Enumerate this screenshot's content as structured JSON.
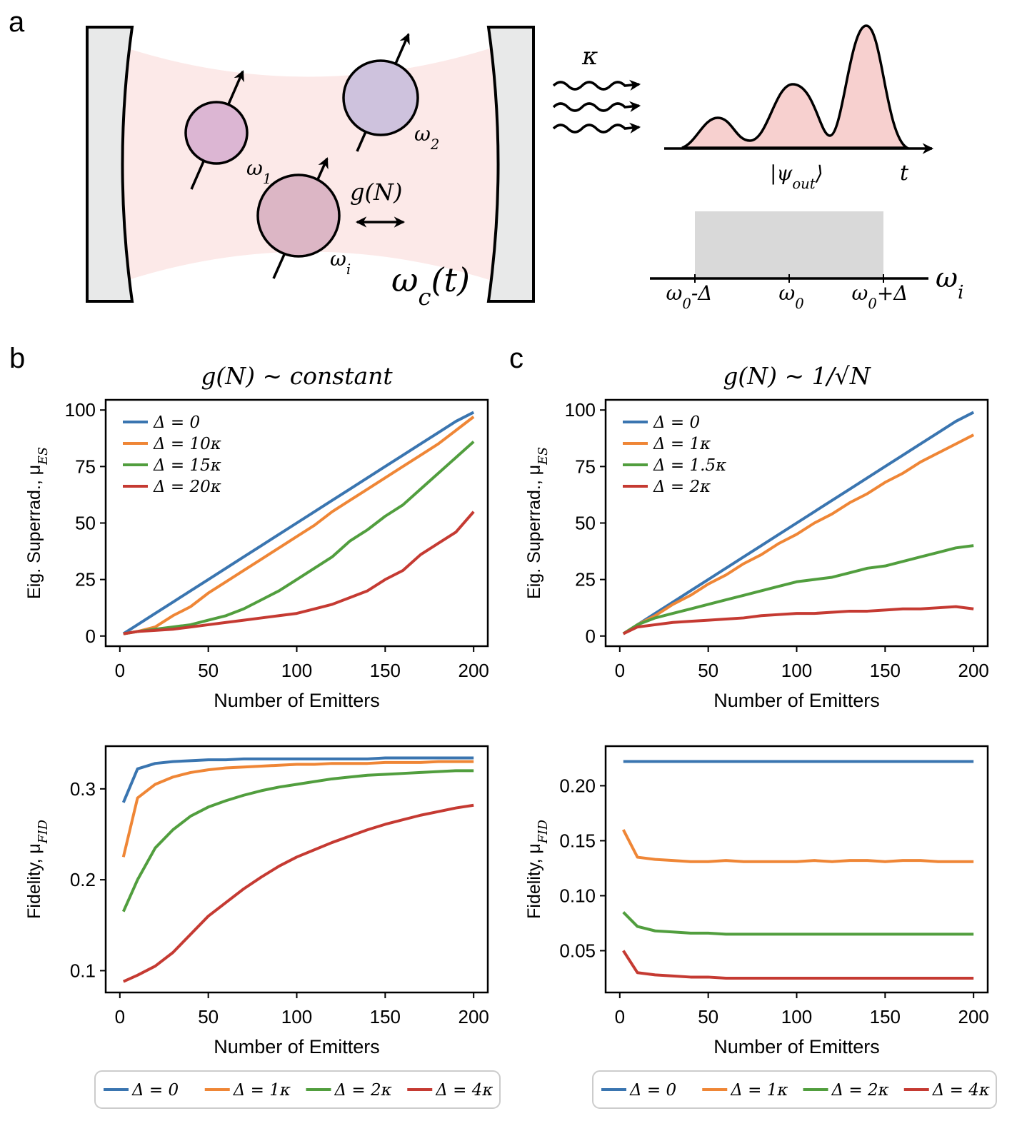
{
  "diagram": {
    "label": "a",
    "decay": "κ",
    "coupling": "g(N)",
    "emitters": [
      {
        "main": "ω",
        "sub": "1"
      },
      {
        "main": "ω",
        "sub": "2"
      },
      {
        "main": "ω",
        "sub": "i"
      }
    ],
    "cavity": {
      "main": "ω",
      "sub": "c",
      "tail": "(t)"
    },
    "output": {
      "open": "|ψ",
      "sub": "out",
      "close": "⟩"
    },
    "time_axis": "t",
    "freq_ticks": [
      {
        "main": "ω",
        "sub": "0",
        "tail": "-Δ"
      },
      {
        "main": "ω",
        "sub": "0"
      },
      {
        "main": "ω",
        "sub": "0",
        "tail": "+Δ"
      }
    ],
    "freq_axis": {
      "main": "ω",
      "sub": "i"
    }
  },
  "chart_data": [
    {
      "type": "line",
      "panel_label": "b",
      "title": "g(N) ∼ constant",
      "xlabel": "Number of Emitters",
      "ylabel": {
        "main": "Eig. Superrad., μ",
        "sub": "ES"
      },
      "xlim": [
        -8,
        208
      ],
      "ylim": [
        -4.5,
        104.5
      ],
      "xticks": [
        0,
        50,
        100,
        150,
        200
      ],
      "yticks": [
        0,
        25,
        50,
        75,
        100
      ],
      "legend": "upper left",
      "x": [
        2,
        10,
        20,
        30,
        40,
        50,
        60,
        70,
        80,
        90,
        100,
        110,
        120,
        130,
        140,
        150,
        160,
        170,
        180,
        190,
        200
      ],
      "series": [
        {
          "name": "Δ = 0",
          "color": "#3a75b0",
          "values": [
            1,
            5,
            10,
            15,
            20,
            25,
            30,
            35,
            40,
            45,
            50,
            55,
            60,
            65,
            70,
            75,
            80,
            85,
            90,
            95,
            99
          ]
        },
        {
          "name": "Δ = 10κ",
          "color": "#ef8636",
          "values": [
            1,
            2,
            4,
            9,
            13,
            19,
            24,
            29,
            34,
            39,
            44,
            49,
            55,
            60,
            65,
            70,
            75,
            80,
            85,
            91,
            97
          ]
        },
        {
          "name": "Δ = 15κ",
          "color": "#519e3e",
          "values": [
            1,
            2,
            3,
            4,
            5,
            7,
            9,
            12,
            16,
            20,
            25,
            30,
            35,
            42,
            47,
            53,
            58,
            65,
            72,
            79,
            86
          ]
        },
        {
          "name": "Δ = 20κ",
          "color": "#c53a32",
          "values": [
            1,
            2,
            2.5,
            3,
            4,
            5,
            6,
            7,
            8,
            9,
            10,
            12,
            14,
            17,
            20,
            25,
            29,
            36,
            41,
            46,
            55
          ]
        }
      ]
    },
    {
      "type": "line",
      "xlabel": "Number of Emitters",
      "ylabel": {
        "main": "Fidelity, μ",
        "sub": "FID"
      },
      "xlim": [
        -8,
        208
      ],
      "ylim": [
        0.076,
        0.347
      ],
      "xticks": [
        0,
        50,
        100,
        150,
        200
      ],
      "yticks": [
        0.1,
        0.2,
        0.3
      ],
      "legend": "below",
      "x": [
        2,
        10,
        20,
        30,
        40,
        50,
        60,
        70,
        80,
        90,
        100,
        110,
        120,
        130,
        140,
        150,
        160,
        170,
        180,
        190,
        200
      ],
      "series": [
        {
          "name": "Δ = 0",
          "color": "#3a75b0",
          "values": [
            0.285,
            0.322,
            0.328,
            0.33,
            0.331,
            0.332,
            0.332,
            0.333,
            0.333,
            0.333,
            0.333,
            0.333,
            0.333,
            0.333,
            0.333,
            0.334,
            0.334,
            0.334,
            0.334,
            0.334,
            0.334
          ]
        },
        {
          "name": "Δ = 1κ",
          "color": "#ef8636",
          "values": [
            0.225,
            0.29,
            0.305,
            0.313,
            0.318,
            0.321,
            0.323,
            0.324,
            0.325,
            0.326,
            0.327,
            0.327,
            0.328,
            0.328,
            0.328,
            0.329,
            0.329,
            0.329,
            0.33,
            0.33,
            0.33
          ]
        },
        {
          "name": "Δ = 2κ",
          "color": "#519e3e",
          "values": [
            0.165,
            0.2,
            0.235,
            0.255,
            0.27,
            0.28,
            0.287,
            0.293,
            0.298,
            0.302,
            0.305,
            0.308,
            0.311,
            0.313,
            0.315,
            0.316,
            0.317,
            0.318,
            0.319,
            0.32,
            0.32
          ]
        },
        {
          "name": "Δ = 4κ",
          "color": "#c53a32",
          "values": [
            0.088,
            0.095,
            0.105,
            0.12,
            0.14,
            0.16,
            0.175,
            0.19,
            0.203,
            0.215,
            0.225,
            0.233,
            0.241,
            0.248,
            0.255,
            0.261,
            0.266,
            0.271,
            0.275,
            0.279,
            0.282
          ]
        }
      ]
    },
    {
      "type": "line",
      "panel_label": "c",
      "title": "g(N) ∼ 1/√N",
      "xlabel": "Number of Emitters",
      "ylabel": {
        "main": "Eig. Superrad., μ",
        "sub": "ES"
      },
      "xlim": [
        -8,
        208
      ],
      "ylim": [
        -4.5,
        104.5
      ],
      "xticks": [
        0,
        50,
        100,
        150,
        200
      ],
      "yticks": [
        0,
        25,
        50,
        75,
        100
      ],
      "legend": "upper left",
      "x": [
        2,
        10,
        20,
        30,
        40,
        50,
        60,
        70,
        80,
        90,
        100,
        110,
        120,
        130,
        140,
        150,
        160,
        170,
        180,
        190,
        200
      ],
      "series": [
        {
          "name": "Δ = 0",
          "color": "#3a75b0",
          "values": [
            1,
            5,
            10,
            15,
            20,
            25,
            30,
            35,
            40,
            45,
            50,
            55,
            60,
            65,
            70,
            75,
            80,
            85,
            90,
            95,
            99
          ]
        },
        {
          "name": "Δ = 1κ",
          "color": "#ef8636",
          "values": [
            1,
            5,
            9,
            14,
            18,
            23,
            27,
            32,
            36,
            41,
            45,
            50,
            54,
            59,
            63,
            68,
            72,
            77,
            81,
            85,
            89
          ]
        },
        {
          "name": "Δ = 1.5κ",
          "color": "#519e3e",
          "values": [
            1,
            5,
            8,
            10,
            12,
            14,
            16,
            18,
            20,
            22,
            24,
            25,
            26,
            28,
            30,
            31,
            33,
            35,
            37,
            39,
            40
          ]
        },
        {
          "name": "Δ = 2κ",
          "color": "#c53a32",
          "values": [
            1,
            4,
            5,
            6,
            6.5,
            7,
            7.5,
            8,
            9,
            9.5,
            10,
            10,
            10.5,
            11,
            11,
            11.5,
            12,
            12,
            12.5,
            13,
            12
          ]
        }
      ]
    },
    {
      "type": "line",
      "xlabel": "Number of Emitters",
      "ylabel": {
        "main": "Fidelity, μ",
        "sub": "FID"
      },
      "xlim": [
        -8,
        208
      ],
      "ylim": [
        0.012,
        0.236
      ],
      "xticks": [
        0,
        50,
        100,
        150,
        200
      ],
      "yticks": [
        0.05,
        {
          "value": 0.1,
          "label": "0.10"
        },
        0.15,
        {
          "value": 0.2,
          "label": "0.20"
        }
      ],
      "legend": "below",
      "x": [
        2,
        10,
        20,
        30,
        40,
        50,
        60,
        70,
        80,
        90,
        100,
        110,
        120,
        130,
        140,
        150,
        160,
        170,
        180,
        190,
        200
      ],
      "series": [
        {
          "name": "Δ = 0",
          "color": "#3a75b0",
          "values": [
            0.222,
            0.222,
            0.222,
            0.222,
            0.222,
            0.222,
            0.222,
            0.222,
            0.222,
            0.222,
            0.222,
            0.222,
            0.222,
            0.222,
            0.222,
            0.222,
            0.222,
            0.222,
            0.222,
            0.222,
            0.222
          ]
        },
        {
          "name": "Δ = 1κ",
          "color": "#ef8636",
          "values": [
            0.16,
            0.135,
            0.133,
            0.132,
            0.131,
            0.131,
            0.132,
            0.131,
            0.131,
            0.131,
            0.131,
            0.132,
            0.131,
            0.132,
            0.132,
            0.131,
            0.132,
            0.132,
            0.131,
            0.131,
            0.131
          ]
        },
        {
          "name": "Δ = 2κ",
          "color": "#519e3e",
          "values": [
            0.085,
            0.072,
            0.068,
            0.067,
            0.066,
            0.066,
            0.065,
            0.065,
            0.065,
            0.065,
            0.065,
            0.065,
            0.065,
            0.065,
            0.065,
            0.065,
            0.065,
            0.065,
            0.065,
            0.065,
            0.065
          ]
        },
        {
          "name": "Δ = 4κ",
          "color": "#c53a32",
          "values": [
            0.05,
            0.03,
            0.028,
            0.027,
            0.026,
            0.026,
            0.025,
            0.025,
            0.025,
            0.025,
            0.025,
            0.025,
            0.025,
            0.025,
            0.025,
            0.025,
            0.025,
            0.025,
            0.025,
            0.025,
            0.025
          ]
        }
      ]
    }
  ]
}
